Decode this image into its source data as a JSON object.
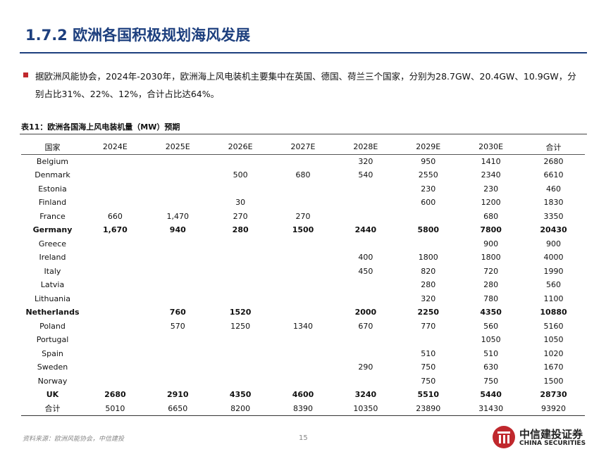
{
  "header": {
    "title": "1.7.2 欧洲各国积极规划海风发展"
  },
  "bullet": "据欧洲风能协会，2024年-2030年，欧洲海上风电装机主要集中在英国、德国、荷兰三个国家，分别为28.7GW、20.4GW、10.9GW，分别占比31%、22%、12%，合计占比达64%。",
  "table": {
    "caption": "表11：欧洲各国海上风电装机量（MW）预期",
    "columns": [
      "国家",
      "2024E",
      "2025E",
      "2026E",
      "2027E",
      "2028E",
      "2029E",
      "2030E",
      "合计"
    ],
    "rows": [
      {
        "cells": [
          "Belgium",
          null,
          null,
          null,
          null,
          "320",
          "950",
          "1410",
          "2680"
        ]
      },
      {
        "cells": [
          "Denmark",
          null,
          null,
          "500",
          "680",
          "540",
          "2550",
          "2340",
          "6610"
        ]
      },
      {
        "cells": [
          "Estonia",
          null,
          null,
          null,
          null,
          null,
          "230",
          "230",
          "460"
        ]
      },
      {
        "cells": [
          "Finland",
          null,
          null,
          "30",
          null,
          null,
          "600",
          "1200",
          "1830"
        ]
      },
      {
        "cells": [
          "France",
          "660",
          "1,470",
          "270",
          "270",
          null,
          null,
          "680",
          "3350"
        ]
      },
      {
        "cells": [
          "Germany",
          "1,670",
          "940",
          "280",
          "1500",
          "2440",
          "5800",
          "7800",
          "20430"
        ],
        "bold": true
      },
      {
        "cells": [
          "Greece",
          null,
          null,
          null,
          null,
          null,
          null,
          "900",
          "900"
        ]
      },
      {
        "cells": [
          "Ireland",
          null,
          null,
          null,
          null,
          "400",
          "1800",
          "1800",
          "4000"
        ]
      },
      {
        "cells": [
          "Italy",
          null,
          null,
          null,
          null,
          "450",
          "820",
          "720",
          "1990"
        ]
      },
      {
        "cells": [
          "Latvia",
          null,
          null,
          null,
          null,
          null,
          "280",
          "280",
          "560"
        ]
      },
      {
        "cells": [
          "Lithuania",
          null,
          null,
          null,
          null,
          null,
          "320",
          "780",
          "1100"
        ]
      },
      {
        "cells": [
          "Netherlands",
          null,
          "760",
          "1520",
          null,
          "2000",
          "2250",
          "4350",
          "10880"
        ],
        "bold": true
      },
      {
        "cells": [
          "Poland",
          null,
          "570",
          "1250",
          "1340",
          "670",
          "770",
          "560",
          "5160"
        ]
      },
      {
        "cells": [
          "Portugal",
          null,
          null,
          null,
          null,
          null,
          null,
          "1050",
          "1050"
        ]
      },
      {
        "cells": [
          "Spain",
          null,
          null,
          null,
          null,
          null,
          "510",
          "510",
          "1020"
        ]
      },
      {
        "cells": [
          "Sweden",
          null,
          null,
          null,
          null,
          "290",
          "750",
          "630",
          "1670"
        ]
      },
      {
        "cells": [
          "Norway",
          null,
          null,
          null,
          null,
          null,
          "750",
          "750",
          "1500"
        ]
      },
      {
        "cells": [
          "UK",
          "2680",
          "2910",
          "4350",
          "4600",
          "3240",
          "5510",
          "5440",
          "28730"
        ],
        "bold": true
      },
      {
        "cells": [
          "合计",
          "5010",
          "6650",
          "8200",
          "8390",
          "10350",
          "23890",
          "31430",
          "93920"
        ]
      }
    ]
  },
  "footer": {
    "source": "资料来源：欧洲风能协会，中信建投",
    "page": "15",
    "logo_cn": "中信建投证券",
    "logo_en": "CHINA SECURITIES"
  }
}
